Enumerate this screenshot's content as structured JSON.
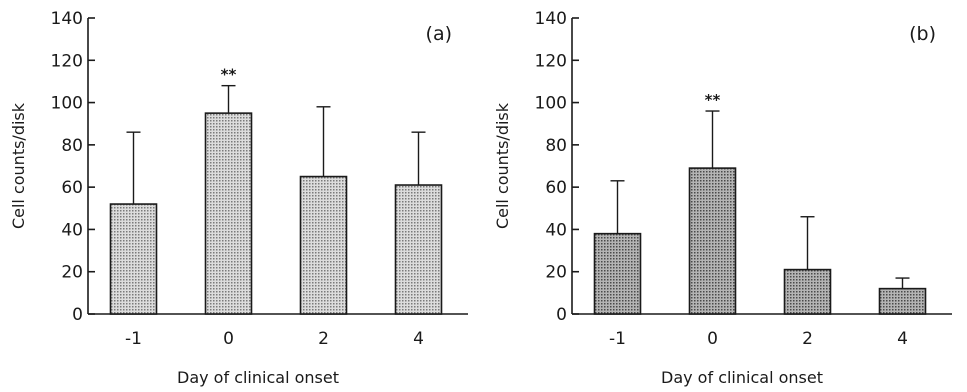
{
  "chart_data": [
    {
      "type": "bar",
      "panel_label": "(a)",
      "categories": [
        "-1",
        "0",
        "2",
        "4"
      ],
      "values": [
        52,
        95,
        65,
        61
      ],
      "error_upper": [
        86,
        108,
        98,
        86
      ],
      "annotations": [
        "",
        "**",
        "",
        ""
      ],
      "xlabel": "Day of clinical onset",
      "ylabel": "Cell counts/disk",
      "ylim": [
        0,
        140
      ],
      "yticks": [
        "0",
        "20",
        "40",
        "60",
        "80",
        "100",
        "120",
        "140"
      ],
      "bar_color": "#c4c4c4"
    },
    {
      "type": "bar",
      "panel_label": "(b)",
      "categories": [
        "-1",
        "0",
        "2",
        "4"
      ],
      "values": [
        38,
        69,
        21,
        12
      ],
      "error_upper": [
        63,
        96,
        46,
        17
      ],
      "annotations": [
        "",
        "**",
        "",
        ""
      ],
      "xlabel": "Day of clinical onset",
      "ylabel": "Cell counts/disk",
      "ylim": [
        0,
        140
      ],
      "yticks": [
        "0",
        "20",
        "40",
        "60",
        "80",
        "100",
        "120",
        "140"
      ],
      "bar_color": "#9c9c9c"
    }
  ]
}
